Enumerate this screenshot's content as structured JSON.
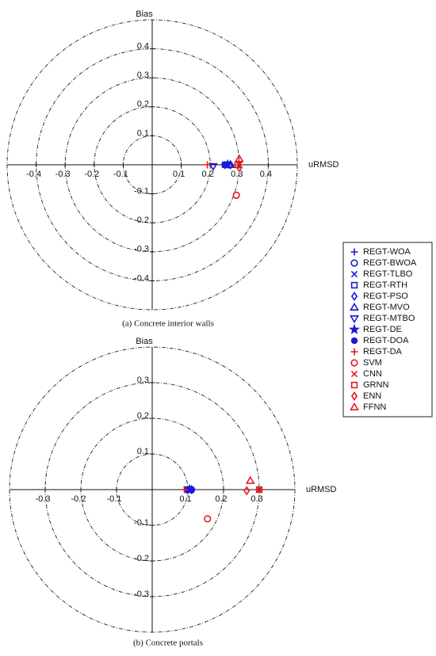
{
  "chart_data": [
    {
      "type": "scatter",
      "xlabel": "uRMSD",
      "ylabel": "Bias",
      "caption": "(a) Concrete interior walls",
      "xlim": [
        -0.5,
        0.5
      ],
      "ylim": [
        -0.5,
        0.5
      ],
      "xticks": [
        -0.4,
        -0.3,
        -0.2,
        -0.1,
        0.1,
        0.2,
        0.3,
        0.4
      ],
      "yticks": [
        -0.4,
        -0.3,
        -0.2,
        -0.1,
        0.1,
        0.2,
        0.3,
        0.4
      ],
      "series": [
        {
          "name": "REGT-WOA",
          "color": "#1a1ad8",
          "marker": "plus",
          "x": [
            0.25
          ],
          "values": [
            0
          ]
        },
        {
          "name": "REGT-BWOA",
          "color": "#1a1ad8",
          "marker": "circle",
          "x": [
            0.265
          ],
          "values": [
            0
          ]
        },
        {
          "name": "REGT-TLBO",
          "color": "#1a1ad8",
          "marker": "cross",
          "x": [
            0.25
          ],
          "values": [
            0
          ]
        },
        {
          "name": "REGT-RTH",
          "color": "#1a1ad8",
          "marker": "square",
          "x": [
            0.255
          ],
          "values": [
            0
          ]
        },
        {
          "name": "REGT-PSO",
          "color": "#1a1ad8",
          "marker": "diamond",
          "x": [
            0.27
          ],
          "values": [
            0
          ]
        },
        {
          "name": "REGT-MVO",
          "color": "#1a1ad8",
          "marker": "triangle",
          "x": [
            0.27
          ],
          "values": [
            0
          ]
        },
        {
          "name": "REGT-MTBO",
          "color": "#1a1ad8",
          "marker": "triangle-down",
          "x": [
            0.21
          ],
          "values": [
            -0.005
          ]
        },
        {
          "name": "REGT-DE",
          "color": "#1a1ad8",
          "marker": "star",
          "x": [
            0.26
          ],
          "values": [
            0
          ]
        },
        {
          "name": "REGT-DOA",
          "color": "#1a1ad8",
          "marker": "dot",
          "x": [
            0.25
          ],
          "values": [
            0
          ]
        },
        {
          "name": "REGT-DA",
          "color": "#e8191b",
          "marker": "plus",
          "x": [
            0.19
          ],
          "values": [
            0
          ]
        },
        {
          "name": "SVM",
          "color": "#e8191b",
          "marker": "circle",
          "x": [
            0.29
          ],
          "values": [
            -0.105
          ]
        },
        {
          "name": "CNN",
          "color": "#e8191b",
          "marker": "cross",
          "x": [
            0.3
          ],
          "values": [
            0
          ]
        },
        {
          "name": "GRNN",
          "color": "#e8191b",
          "marker": "square",
          "x": [
            0.295
          ],
          "values": [
            0
          ]
        },
        {
          "name": "ENN",
          "color": "#e8191b",
          "marker": "diamond",
          "x": [
            0.3
          ],
          "values": [
            -0.01
          ]
        },
        {
          "name": "FFNN",
          "color": "#e8191b",
          "marker": "triangle",
          "x": [
            0.3
          ],
          "values": [
            0.02
          ]
        }
      ]
    },
    {
      "type": "scatter",
      "xlabel": "uRMSD",
      "ylabel": "Bias",
      "caption": "(b) Concrete portals",
      "xlim": [
        -0.4,
        0.4
      ],
      "ylim": [
        -0.4,
        0.4
      ],
      "xticks": [
        -0.3,
        -0.2,
        -0.1,
        0.1,
        0.2,
        0.3
      ],
      "yticks": [
        -0.3,
        -0.2,
        -0.1,
        0.1,
        0.2,
        0.3
      ],
      "series": [
        {
          "color": "#1a1ad8",
          "marker": "plus",
          "x": [
            0.1
          ],
          "values": [
            0
          ]
        },
        {
          "color": "#1a1ad8",
          "marker": "circle",
          "x": [
            0.11
          ],
          "values": [
            0
          ]
        },
        {
          "color": "#1a1ad8",
          "marker": "cross",
          "x": [
            0.1
          ],
          "values": [
            0
          ]
        },
        {
          "color": "#1a1ad8",
          "marker": "square",
          "x": [
            0.105
          ],
          "values": [
            0
          ]
        },
        {
          "color": "#1a1ad8",
          "marker": "diamond",
          "x": [
            0.11
          ],
          "values": [
            0
          ]
        },
        {
          "color": "#1a1ad8",
          "marker": "triangle",
          "x": [
            0.105
          ],
          "values": [
            0
          ]
        },
        {
          "color": "#1a1ad8",
          "marker": "triangle-down",
          "x": [
            0.1
          ],
          "values": [
            0
          ]
        },
        {
          "color": "#1a1ad8",
          "marker": "star",
          "x": [
            0.105
          ],
          "values": [
            0
          ]
        },
        {
          "color": "#1a1ad8",
          "marker": "dot",
          "x": [
            0.1
          ],
          "values": [
            0
          ]
        },
        {
          "color": "#e8191b",
          "marker": "plus",
          "x": [
            0.09
          ],
          "values": [
            0
          ]
        },
        {
          "color": "#e8191b",
          "marker": "circle",
          "x": [
            0.155
          ],
          "values": [
            -0.082
          ]
        },
        {
          "color": "#e8191b",
          "marker": "cross",
          "x": [
            0.3
          ],
          "values": [
            0
          ]
        },
        {
          "color": "#e8191b",
          "marker": "square",
          "x": [
            0.3
          ],
          "values": [
            0
          ]
        },
        {
          "color": "#e8191b",
          "marker": "diamond",
          "x": [
            0.265
          ],
          "values": [
            -0.003
          ]
        },
        {
          "color": "#e8191b",
          "marker": "triangle",
          "x": [
            0.275
          ],
          "values": [
            0.025
          ]
        }
      ]
    }
  ]
}
